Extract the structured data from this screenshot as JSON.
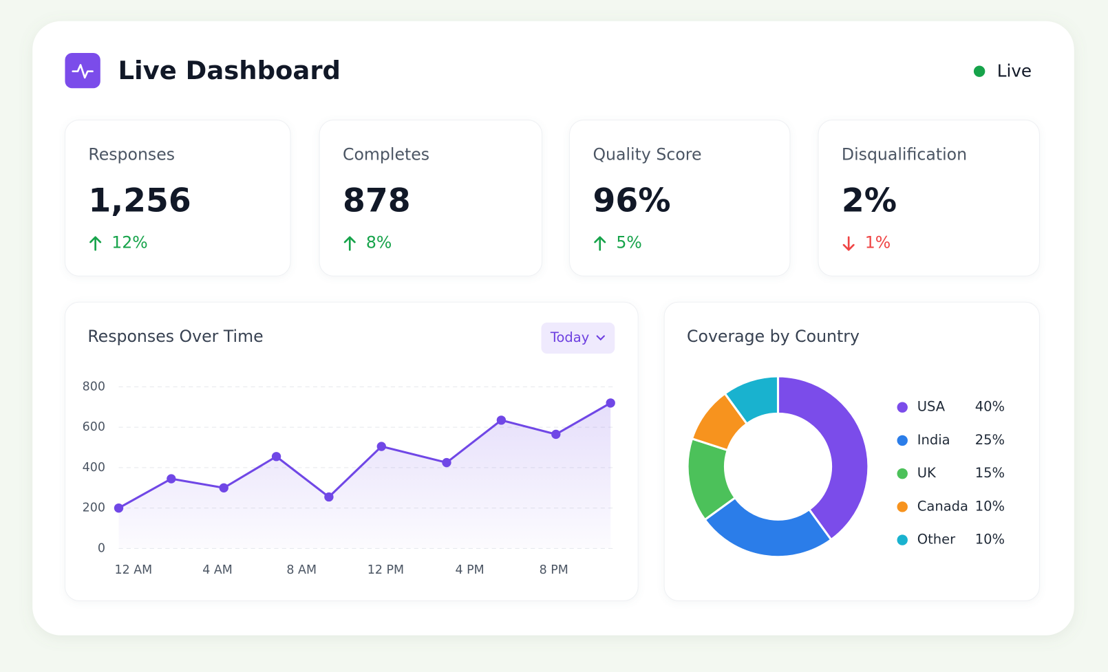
{
  "header": {
    "title": "Live Dashboard",
    "status": "Live"
  },
  "kpis": [
    {
      "label": "Responses",
      "value": "1,256",
      "change": "12%",
      "direction": "up"
    },
    {
      "label": "Completes",
      "value": "878",
      "change": "8%",
      "direction": "up"
    },
    {
      "label": "Quality Score",
      "value": "96%",
      "change": "5%",
      "direction": "up"
    },
    {
      "label": "Disqualification",
      "value": "2%",
      "change": "1%",
      "direction": "down"
    }
  ],
  "filter": "Today",
  "chart_data": [
    {
      "type": "line",
      "title": "Responses Over Time",
      "color": "#7047e6",
      "x": [
        -0.7,
        1.8,
        4.3,
        6.8,
        9.3,
        11.8,
        14.9,
        17.5,
        20.1,
        22.7
      ],
      "values": [
        200,
        345,
        300,
        455,
        255,
        505,
        425,
        635,
        565,
        720
      ],
      "xlim": [
        -0.7,
        22.9
      ],
      "xticks": [
        {
          "value": 0,
          "label": "12 AM"
        },
        {
          "value": 4,
          "label": "4 AM"
        },
        {
          "value": 8,
          "label": "8 AM"
        },
        {
          "value": 12,
          "label": "12 PM"
        },
        {
          "value": 16,
          "label": "4 PM"
        },
        {
          "value": 20,
          "label": "8 PM"
        }
      ],
      "ylim": [
        0,
        800
      ],
      "yticks": [
        0,
        200,
        400,
        600,
        800
      ],
      "grid": true
    },
    {
      "type": "pie",
      "title": "Coverage by Country",
      "categories": [
        "USA",
        "India",
        "UK",
        "Canada",
        "Other"
      ],
      "values": [
        40,
        25,
        15,
        10,
        10
      ],
      "value_labels": [
        "40%",
        "25%",
        "15%",
        "10%",
        "10%"
      ],
      "colors": [
        "#7b4cea",
        "#2b7de9",
        "#4cc15a",
        "#f7931e",
        "#19b2cf"
      ]
    }
  ]
}
